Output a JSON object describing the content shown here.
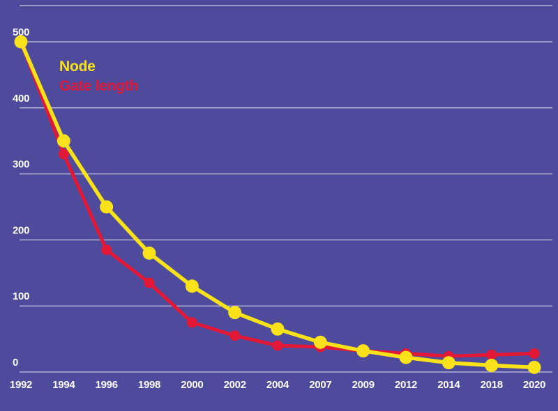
{
  "chart_data": {
    "type": "line",
    "title": "",
    "xlabel": "",
    "ylabel": "",
    "categories": [
      "1992",
      "1994",
      "1996",
      "1998",
      "2000",
      "2002",
      "2004",
      "2007",
      "2009",
      "2012",
      "2014",
      "2018",
      "2020"
    ],
    "series": [
      {
        "name": "Node",
        "color": "#f9e21a",
        "values": [
          500,
          350,
          250,
          180,
          130,
          90,
          65,
          45,
          32,
          22,
          14,
          10,
          7
        ]
      },
      {
        "name": "Gate length",
        "color": "#e31837",
        "values": [
          500,
          330,
          185,
          135,
          75,
          55,
          40,
          38,
          32,
          28,
          24,
          26,
          28
        ]
      }
    ],
    "yticks": [
      0,
      100,
      200,
      300,
      400,
      500
    ],
    "ylim": [
      0,
      500
    ],
    "grid": true,
    "legend_position": "top-left",
    "colors": {
      "background": "#4e4a9c",
      "gridline": "#b3b1d3",
      "tick_label": "#ffffff"
    }
  }
}
